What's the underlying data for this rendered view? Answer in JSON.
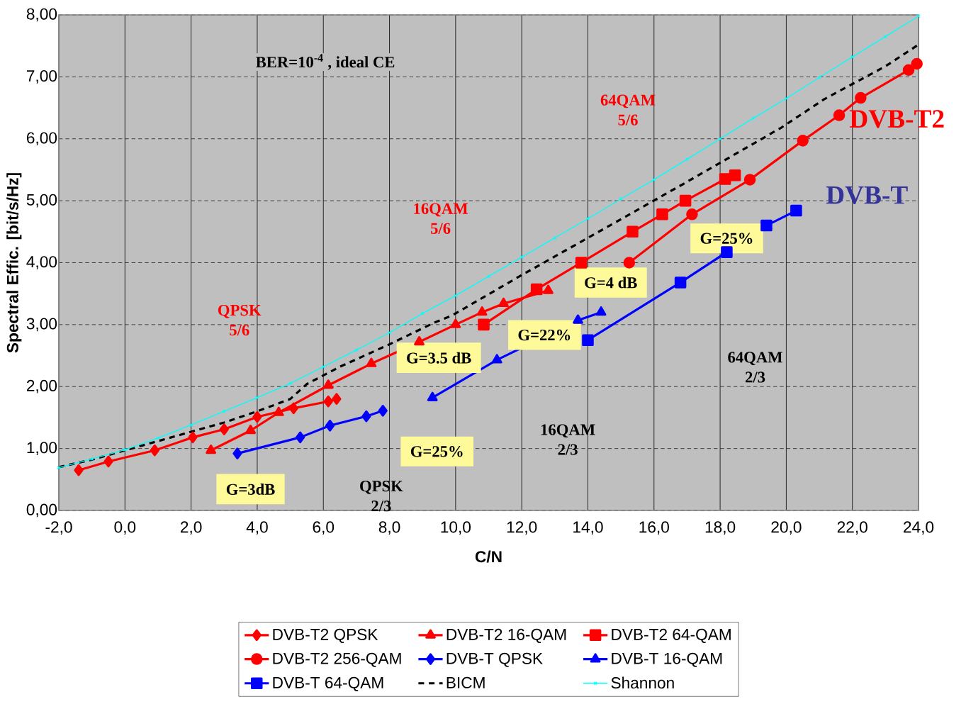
{
  "chart_data": {
    "type": "line",
    "xlabel": "C/N",
    "ylabel": "Spectral Effic. [bit/s/Hz]",
    "xlim": [
      -2,
      24
    ],
    "ylim": [
      0,
      8
    ],
    "xticks": [
      {
        "value": -2,
        "label": "-2,0"
      },
      {
        "value": 0,
        "label": "0,0"
      },
      {
        "value": 2,
        "label": "2,0"
      },
      {
        "value": 4,
        "label": "4,0"
      },
      {
        "value": 6,
        "label": "6,0"
      },
      {
        "value": 8,
        "label": "8,0"
      },
      {
        "value": 10,
        "label": "10,0"
      },
      {
        "value": 12,
        "label": "12,0"
      },
      {
        "value": 14,
        "label": "14,0"
      },
      {
        "value": 16,
        "label": "16,0"
      },
      {
        "value": 18,
        "label": "18,0"
      },
      {
        "value": 20,
        "label": "20,0"
      },
      {
        "value": 22,
        "label": "22,0"
      },
      {
        "value": 24,
        "label": "24,0"
      }
    ],
    "yticks": [
      {
        "value": 0,
        "label": "0,00"
      },
      {
        "value": 1,
        "label": "1,00"
      },
      {
        "value": 2,
        "label": "2,00"
      },
      {
        "value": 3,
        "label": "3,00"
      },
      {
        "value": 4,
        "label": "4,00"
      },
      {
        "value": 5,
        "label": "5,00"
      },
      {
        "value": 6,
        "label": "6,00"
      },
      {
        "value": 7,
        "label": "7,00"
      },
      {
        "value": 8,
        "label": "8,00"
      }
    ],
    "grid": true,
    "legend": "bottom",
    "series": [
      {
        "name": "DVB-T2 QPSK",
        "color": "#ff0000",
        "marker": "diamond",
        "x": [
          -1.4,
          -0.5,
          0.9,
          2.05,
          3.0,
          4.0,
          5.1,
          6.15,
          6.4
        ],
        "values": [
          0.65,
          0.79,
          0.97,
          1.18,
          1.31,
          1.51,
          1.65,
          1.76,
          1.8
        ]
      },
      {
        "name": "DVB-T2 16-QAM",
        "color": "#ff0000",
        "marker": "triangle",
        "x": [
          2.6,
          3.8,
          4.65,
          6.15,
          7.45,
          8.9,
          10.0,
          10.8,
          11.45,
          12.8
        ],
        "values": [
          0.97,
          1.29,
          1.58,
          2.02,
          2.37,
          2.72,
          3.0,
          3.2,
          3.34,
          3.55
        ]
      },
      {
        "name": "DVB-T2 64-QAM",
        "color": "#ff0000",
        "marker": "square",
        "x": [
          10.85,
          12.45,
          13.8,
          15.35,
          16.25,
          16.95,
          18.15,
          18.45
        ],
        "values": [
          3.0,
          3.57,
          4.0,
          4.5,
          4.78,
          5.0,
          5.35,
          5.41
        ]
      },
      {
        "name": "DVB-T2 256-QAM",
        "color": "#ff0000",
        "marker": "circle",
        "x": [
          15.25,
          17.15,
          18.9,
          20.5,
          21.6,
          22.25,
          23.7,
          23.95
        ],
        "values": [
          4.0,
          4.78,
          5.34,
          5.97,
          6.38,
          6.66,
          7.11,
          7.21
        ]
      },
      {
        "name": "DVB-T QPSK",
        "color": "#0000ff",
        "marker": "diamond",
        "x": [
          3.4,
          5.3,
          6.2,
          7.3,
          7.8
        ],
        "values": [
          0.92,
          1.18,
          1.37,
          1.52,
          1.61
        ]
      },
      {
        "name": "DVB-T 16-QAM",
        "color": "#0000ff",
        "marker": "triangle",
        "x": [
          9.3,
          11.25,
          13.7,
          14.4
        ],
        "values": [
          1.82,
          2.43,
          3.07,
          3.2
        ]
      },
      {
        "name": "DVB-T 64-QAM",
        "color": "#0000ff",
        "marker": "square",
        "x": [
          14.0,
          16.8,
          18.2,
          19.4,
          20.3
        ],
        "values": [
          2.75,
          3.68,
          4.17,
          4.6,
          4.84
        ]
      },
      {
        "name": "BICM",
        "color": "#000000",
        "marker": "none",
        "line_style": "dashed",
        "x": [
          -2,
          -1,
          0,
          1,
          2,
          3,
          4,
          5,
          5.5,
          6.5,
          7.95,
          9.35,
          9.9,
          12.0,
          14.1,
          16.95,
          19.85,
          21.15,
          23.0,
          24.0
        ],
        "values": [
          0.7,
          0.82,
          0.97,
          1.12,
          1.27,
          1.42,
          1.6,
          1.8,
          2.04,
          2.32,
          2.67,
          3.03,
          3.15,
          3.8,
          4.43,
          5.29,
          6.18,
          6.64,
          7.17,
          7.52
        ]
      },
      {
        "name": "Shannon",
        "color": "#00ffff",
        "marker": "cross",
        "x": [
          -2,
          -1,
          0,
          1,
          2,
          3,
          4,
          5,
          6,
          7,
          8,
          9,
          10,
          11,
          12,
          13,
          14,
          15,
          16,
          17,
          18,
          19,
          20,
          21,
          22,
          23,
          24
        ],
        "values": [
          0.69,
          0.83,
          0.98,
          1.17,
          1.38,
          1.6,
          1.82,
          2.05,
          2.32,
          2.59,
          2.87,
          3.18,
          3.47,
          3.78,
          4.09,
          4.4,
          4.71,
          5.03,
          5.34,
          5.67,
          6.0,
          6.33,
          6.65,
          6.99,
          7.32,
          7.65,
          7.98
        ]
      }
    ],
    "annotations": [
      "BER=10$^{-4}$ , ideal CE",
      "QPSK 5/6",
      "16QAM 5/6",
      "64QAM 5/6",
      "QPSK 2/3",
      "16QAM 2/3",
      "64QAM 2/3",
      "G=3dB",
      "G=25%",
      "G=3.5 dB",
      "G=22%",
      "G=4 dB",
      "G=25%",
      "DVB-T2",
      "DVB-T"
    ]
  }
}
